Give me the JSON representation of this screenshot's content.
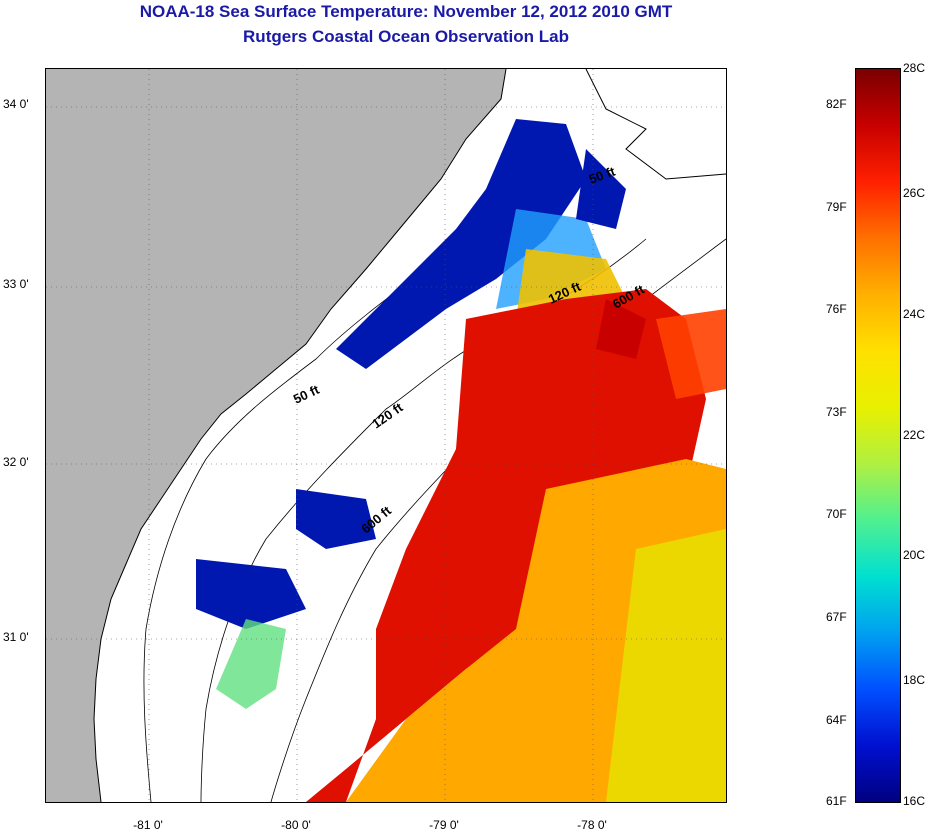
{
  "header": {
    "title": "NOAA-18 Sea Surface Temperature:  November 12, 2012 2010 GMT",
    "subtitle": "Rutgers Coastal Ocean Observation Lab"
  },
  "map": {
    "lat_ticks": [
      {
        "value": 34,
        "label": "34 0'"
      },
      {
        "value": 33,
        "label": "33 0'"
      },
      {
        "value": 32,
        "label": "32 0'"
      },
      {
        "value": 31,
        "label": "31 0'"
      }
    ],
    "lon_ticks": [
      {
        "value": -81,
        "label": "-81 0'"
      },
      {
        "value": -80,
        "label": "-80 0'"
      },
      {
        "value": -79,
        "label": "-79 0'"
      },
      {
        "value": -78,
        "label": "-78 0'"
      }
    ],
    "lon_range": [
      -81.55,
      -77.25
    ],
    "lat_range": [
      30.2,
      34.2
    ],
    "isobath_labels": [
      {
        "text": "50 ft",
        "lon": -77.9,
        "lat": 33.55
      },
      {
        "text": "120 ft",
        "lon": -78.15,
        "lat": 32.95
      },
      {
        "text": "600 ft",
        "lon": -77.7,
        "lat": 32.92
      },
      {
        "text": "50 ft",
        "lon": -80.1,
        "lat": 32.45
      },
      {
        "text": "120 ft",
        "lon": -79.7,
        "lat": 32.28
      },
      {
        "text": "600 ft",
        "lon": -79.5,
        "lat": 31.62
      }
    ],
    "colors": {
      "land": "#b4b4b4",
      "no_data": "#ffffff",
      "coastline": "#000000"
    }
  },
  "colorbar": {
    "fahrenheit_labels": [
      {
        "label": "82F",
        "frac": 0.03
      },
      {
        "label": "79F",
        "frac": 0.17
      },
      {
        "label": "76F",
        "frac": 0.31
      },
      {
        "label": "73F",
        "frac": 0.45
      },
      {
        "label": "70F",
        "frac": 0.59
      },
      {
        "label": "67F",
        "frac": 0.73
      },
      {
        "label": "64F",
        "frac": 0.87
      },
      {
        "label": "61F",
        "frac": 1.0
      }
    ],
    "celsius_labels": [
      {
        "label": "28C",
        "frac": 0.0
      },
      {
        "label": "26C",
        "frac": 0.17
      },
      {
        "label": "24C",
        "frac": 0.335
      },
      {
        "label": "22C",
        "frac": 0.5
      },
      {
        "label": "20C",
        "frac": 0.665
      },
      {
        "label": "18C",
        "frac": 0.835
      },
      {
        "label": "16C",
        "frac": 1.0
      }
    ],
    "gradient": [
      "#7a0000",
      "#c80000",
      "#ff2000",
      "#ff7000",
      "#ffb000",
      "#ffe000",
      "#e8f000",
      "#b0f040",
      "#50f090",
      "#00e0d0",
      "#00a0f0",
      "#0050ff",
      "#0010d0",
      "#000080"
    ]
  }
}
